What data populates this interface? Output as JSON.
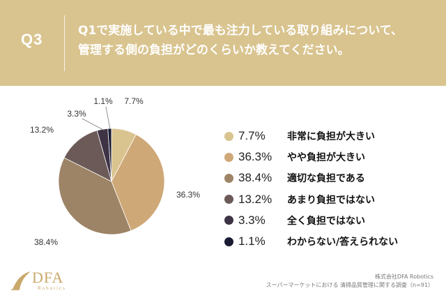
{
  "header": {
    "q_label": "Q3",
    "question_line1": "Q1で実施している中で最も注力している取り組みについて、",
    "question_line2": "管理する側の負担がどのくらいか教えてください。"
  },
  "chart_data": {
    "type": "pie",
    "categories": [
      "非常に負担が大きい",
      "やや負担が大きい",
      "適切な負担である",
      "あまり負担ではない",
      "全く負担ではない",
      "わからない/答えられない"
    ],
    "values": [
      7.7,
      36.3,
      38.4,
      13.2,
      3.3,
      1.1
    ],
    "value_labels": [
      "7.7%",
      "36.3%",
      "38.4%",
      "13.2%",
      "3.3%",
      "1.1%"
    ],
    "colors": [
      "#d9c48f",
      "#cfa878",
      "#9e8466",
      "#6b5a58",
      "#3e3344",
      "#1a1b33"
    ],
    "legend": "right"
  },
  "logo": {
    "name": "DFA",
    "sub": "Robotics"
  },
  "footer": {
    "company": "株式会社DFA Robotics",
    "survey": "スーパーマーケットにおける 清掃品質管理に関する調査（n=91）"
  }
}
